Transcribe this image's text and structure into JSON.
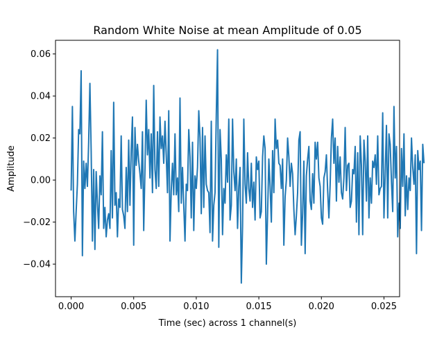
{
  "chart_data": {
    "type": "line",
    "title": "Random White Noise at mean Amplitude of 0.05",
    "xlabel": "Time (sec) across 1 channel(s)",
    "ylabel": "Amplitude",
    "xlim": [
      -0.00125,
      0.02625
    ],
    "ylim": [
      -0.0555,
      0.0665
    ],
    "grid": false,
    "line_color": "#1f77b4",
    "x_ticks": [
      {
        "value": 0.0,
        "label": "0.000"
      },
      {
        "value": 0.005,
        "label": "0.005"
      },
      {
        "value": 0.01,
        "label": "0.010"
      },
      {
        "value": 0.015,
        "label": "0.015"
      },
      {
        "value": 0.02,
        "label": "0.020"
      },
      {
        "value": 0.025,
        "label": "0.025"
      }
    ],
    "y_ticks": [
      {
        "value": -0.04,
        "label": "−0.04"
      },
      {
        "value": -0.02,
        "label": "−0.02"
      },
      {
        "value": 0.0,
        "label": "0.00"
      },
      {
        "value": 0.02,
        "label": "0.02"
      },
      {
        "value": 0.04,
        "label": "0.04"
      },
      {
        "value": 0.06,
        "label": "0.06"
      }
    ],
    "x_step": 0.0001,
    "series": [
      {
        "values": [
          -0.005,
          0.035,
          -0.015,
          -0.029,
          -0.015,
          -0.002,
          0.024,
          0.022,
          0.052,
          -0.036,
          0.009,
          -0.004,
          0.008,
          -0.003,
          0.018,
          0.046,
          0.014,
          -0.029,
          0.005,
          -0.033,
          0.004,
          -0.011,
          -0.023,
          0.002,
          -0.007,
          0.023,
          -0.023,
          -0.013,
          -0.027,
          -0.019,
          -0.016,
          -0.023,
          0.014,
          -0.018,
          0.037,
          -0.012,
          -0.006,
          -0.027,
          -0.009,
          -0.013,
          0.021,
          -0.014,
          -0.017,
          -0.023,
          0.006,
          -0.015,
          0.019,
          -0.012,
          0.014,
          0.03,
          -0.031,
          0.025,
          0.007,
          0.017,
          0.009,
          0.003,
          -0.004,
          0.023,
          -0.024,
          0.005,
          0.038,
          0.012,
          0.024,
          0.001,
          0.022,
          -0.006,
          0.045,
          0.005,
          -0.004,
          0.023,
          -0.003,
          0.03,
          0.015,
          0.021,
          0.008,
          0.028,
          0.012,
          -0.006,
          0.033,
          -0.029,
          -0.005,
          0.008,
          -0.007,
          0.022,
          -0.007,
          0.001,
          -0.015,
          0.039,
          -0.011,
          0.006,
          -0.012,
          -0.029,
          -0.002,
          -0.005,
          0.024,
          0.011,
          -0.018,
          0.018,
          -0.024,
          0.002,
          -0.004,
          0.006,
          0.033,
          0.02,
          -0.016,
          0.025,
          -0.013,
          0.021,
          -0.002,
          -0.005,
          -0.006,
          -0.025,
          0.028,
          -0.029,
          -0.012,
          -0.006,
          0.031,
          0.062,
          -0.032,
          0.024,
          0.01,
          -0.026,
          -0.004,
          -0.011,
          0.012,
          -0.001,
          0.029,
          -0.019,
          -0.012,
          0.029,
          0.004,
          -0.005,
          0.01,
          -0.023,
          -0.003,
          0.006,
          -0.049,
          -0.022,
          0.029,
          -0.002,
          -0.011,
          0.013,
          -0.004,
          -0.01,
          0.008,
          -0.013,
          -0.001,
          -0.019,
          0.011,
          0.005,
          0.009,
          -0.018,
          -0.015,
          0.011,
          0.021,
          0.015,
          -0.04,
          -0.016,
          0.01,
          -0.003,
          -0.02,
          0.014,
          -0.006,
          0.029,
          0.015,
          0.019,
          0.008,
          0.007,
          -0.004,
          0.01,
          -0.031,
          -0.008,
          0.0,
          0.02,
          0.011,
          -0.003,
          0.008,
          0.003,
          -0.014,
          -0.026,
          -0.017,
          -0.006,
          0.019,
          0.023,
          -0.031,
          -0.016,
          0.009,
          -0.035,
          0.002,
          0.01,
          0.016,
          -0.01,
          -0.014,
          0.003,
          -0.011,
          0.018,
          0.01,
          0.018,
          0.001,
          -0.003,
          -0.018,
          -0.021,
          0.001,
          0.004,
          0.012,
          -0.005,
          -0.018,
          -0.002,
          0.02,
          0.029,
          0.008,
          0.02,
          -0.01,
          0.016,
          -0.001,
          0.011,
          -0.006,
          -0.009,
          0.001,
          0.025,
          -0.005,
          0.007,
          0.008,
          -0.013,
          -0.01,
          0.005,
          0.003,
          0.016,
          -0.02,
          0.013,
          -0.026,
          0.021,
          0.007,
          -0.026,
          0.019,
          0.009,
          -0.01,
          0.021,
          -0.018,
          0.001,
          -0.011,
          0.009,
          0.006,
          0.012,
          -0.002,
          0.021,
          -0.007,
          -0.004,
          -0.003,
          0.032,
          -0.018,
          0.003,
          0.026,
          -0.018,
          0.022,
          0.017,
          -0.001,
          -0.015,
          0.035,
          0.001,
          0.016,
          -0.027,
          -0.011,
          -0.023,
          0.015,
          -0.003,
          0.022,
          -0.017,
          0.002,
          -0.014,
          0.001,
          -0.005,
          0.02,
          0.006,
          -0.002,
          0.012,
          -0.035,
          0.014,
          0.005,
          0.009,
          -0.024,
          0.017,
          0.008
        ]
      }
    ]
  }
}
